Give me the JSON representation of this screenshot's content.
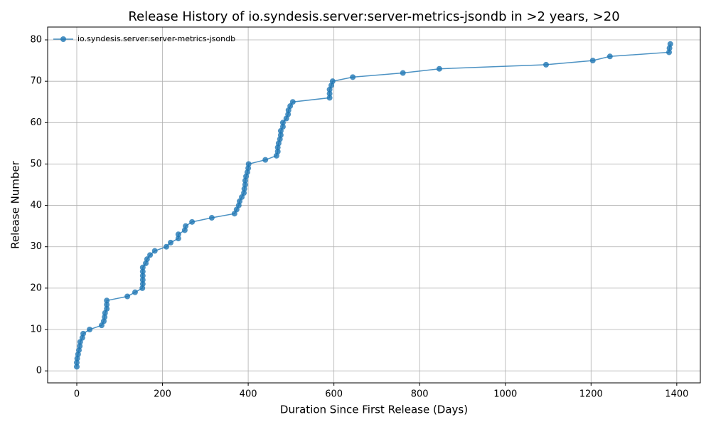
{
  "chart_data": {
    "type": "line",
    "title": "Release History of io.syndesis.server:server-metrics-jsondb in >2 years, >20",
    "x_label": "Duration Since First Release (Days)",
    "y_label": "Release Number",
    "x": [
      0,
      0,
      1,
      3,
      5,
      7,
      8,
      13,
      15,
      30,
      58,
      63,
      65,
      66,
      70,
      70,
      70,
      118,
      136,
      153,
      154,
      154,
      154,
      154,
      154,
      161,
      164,
      171,
      182,
      209,
      219,
      237,
      237,
      252,
      254,
      269,
      315,
      368,
      373,
      378,
      380,
      385,
      390,
      391,
      393,
      393,
      395,
      398,
      400,
      401,
      440,
      466,
      469,
      469,
      471,
      474,
      476,
      476,
      481,
      481,
      489,
      493,
      494,
      498,
      504,
      590,
      590,
      590,
      594,
      597,
      644,
      761,
      846,
      1095,
      1204,
      1244,
      1382,
      1383,
      1385
    ],
    "series": [
      {
        "name": "io.syndesis.server:server-metrics-jsondb",
        "color": "#1f77b4",
        "values": [
          1,
          2,
          3,
          4,
          5,
          6,
          7,
          8,
          9,
          10,
          11,
          12,
          13,
          14,
          15,
          16,
          17,
          18,
          19,
          20,
          21,
          22,
          23,
          24,
          25,
          26,
          27,
          28,
          29,
          30,
          31,
          32,
          33,
          34,
          35,
          36,
          37,
          38,
          39,
          40,
          41,
          42,
          43,
          44,
          45,
          46,
          47,
          48,
          49,
          50,
          51,
          52,
          53,
          54,
          55,
          56,
          57,
          58,
          59,
          60,
          61,
          62,
          63,
          64,
          65,
          66,
          67,
          68,
          69,
          70,
          71,
          72,
          73,
          74,
          75,
          76,
          77,
          78,
          79
        ]
      }
    ],
    "xlim": [
      -68,
      1455
    ],
    "ylim": [
      -2.9,
      83.1
    ],
    "xticks": [
      0,
      200,
      400,
      600,
      800,
      1000,
      1200,
      1400
    ],
    "yticks": [
      0,
      10,
      20,
      30,
      40,
      50,
      60,
      70,
      80
    ],
    "grid": true,
    "legend": "upper left"
  }
}
